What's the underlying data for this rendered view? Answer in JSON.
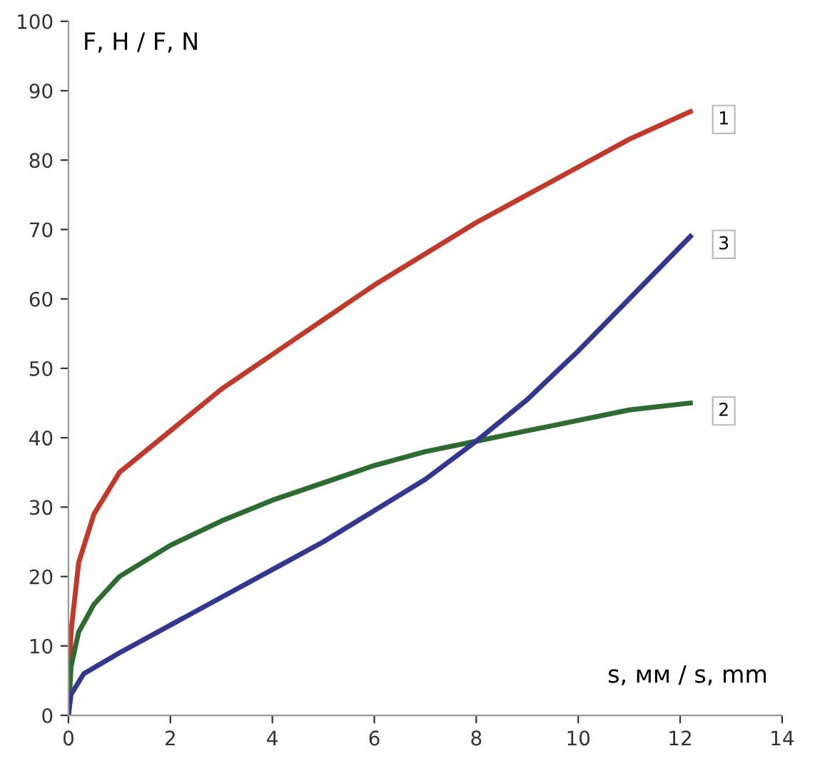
{
  "chart_data": {
    "type": "line",
    "xlabel": "s, мм / s, mm",
    "ylabel": "F, Н / F, N",
    "xlim": [
      0,
      14
    ],
    "ylim": [
      0,
      100
    ],
    "xticks": [
      0,
      2,
      4,
      6,
      8,
      10,
      12,
      14
    ],
    "yticks": [
      0,
      10,
      20,
      30,
      40,
      50,
      60,
      70,
      80,
      90,
      100
    ],
    "grid": false,
    "legend": false,
    "marker": "none",
    "line_style": "solid",
    "series": [
      {
        "name": "1",
        "color": "#c0392b",
        "x": [
          0,
          0.05,
          0.2,
          0.5,
          1,
          2,
          3,
          4,
          5,
          6,
          7,
          8,
          9,
          10,
          11,
          12.2
        ],
        "values": [
          0,
          12,
          22,
          29,
          35,
          41,
          47,
          52,
          57,
          62,
          66.5,
          71,
          75,
          79,
          83,
          87
        ]
      },
      {
        "name": "2",
        "color": "#2e6b30",
        "x": [
          0,
          0.05,
          0.2,
          0.5,
          1,
          2,
          3,
          4,
          5,
          6,
          7,
          8,
          9,
          10,
          11,
          12.2
        ],
        "values": [
          0,
          7,
          12,
          16,
          20,
          24.5,
          28,
          31,
          33.5,
          36,
          38,
          39.5,
          41,
          42.5,
          44,
          45
        ]
      },
      {
        "name": "3",
        "color": "#33378f",
        "x": [
          0,
          0.05,
          0.3,
          1,
          2,
          3,
          4,
          5,
          6,
          7,
          8,
          9,
          10,
          11,
          12.2
        ],
        "values": [
          0,
          3,
          6,
          9,
          13,
          17,
          21,
          25,
          29.5,
          34,
          39.5,
          45.5,
          52.5,
          60,
          69
        ]
      }
    ]
  }
}
